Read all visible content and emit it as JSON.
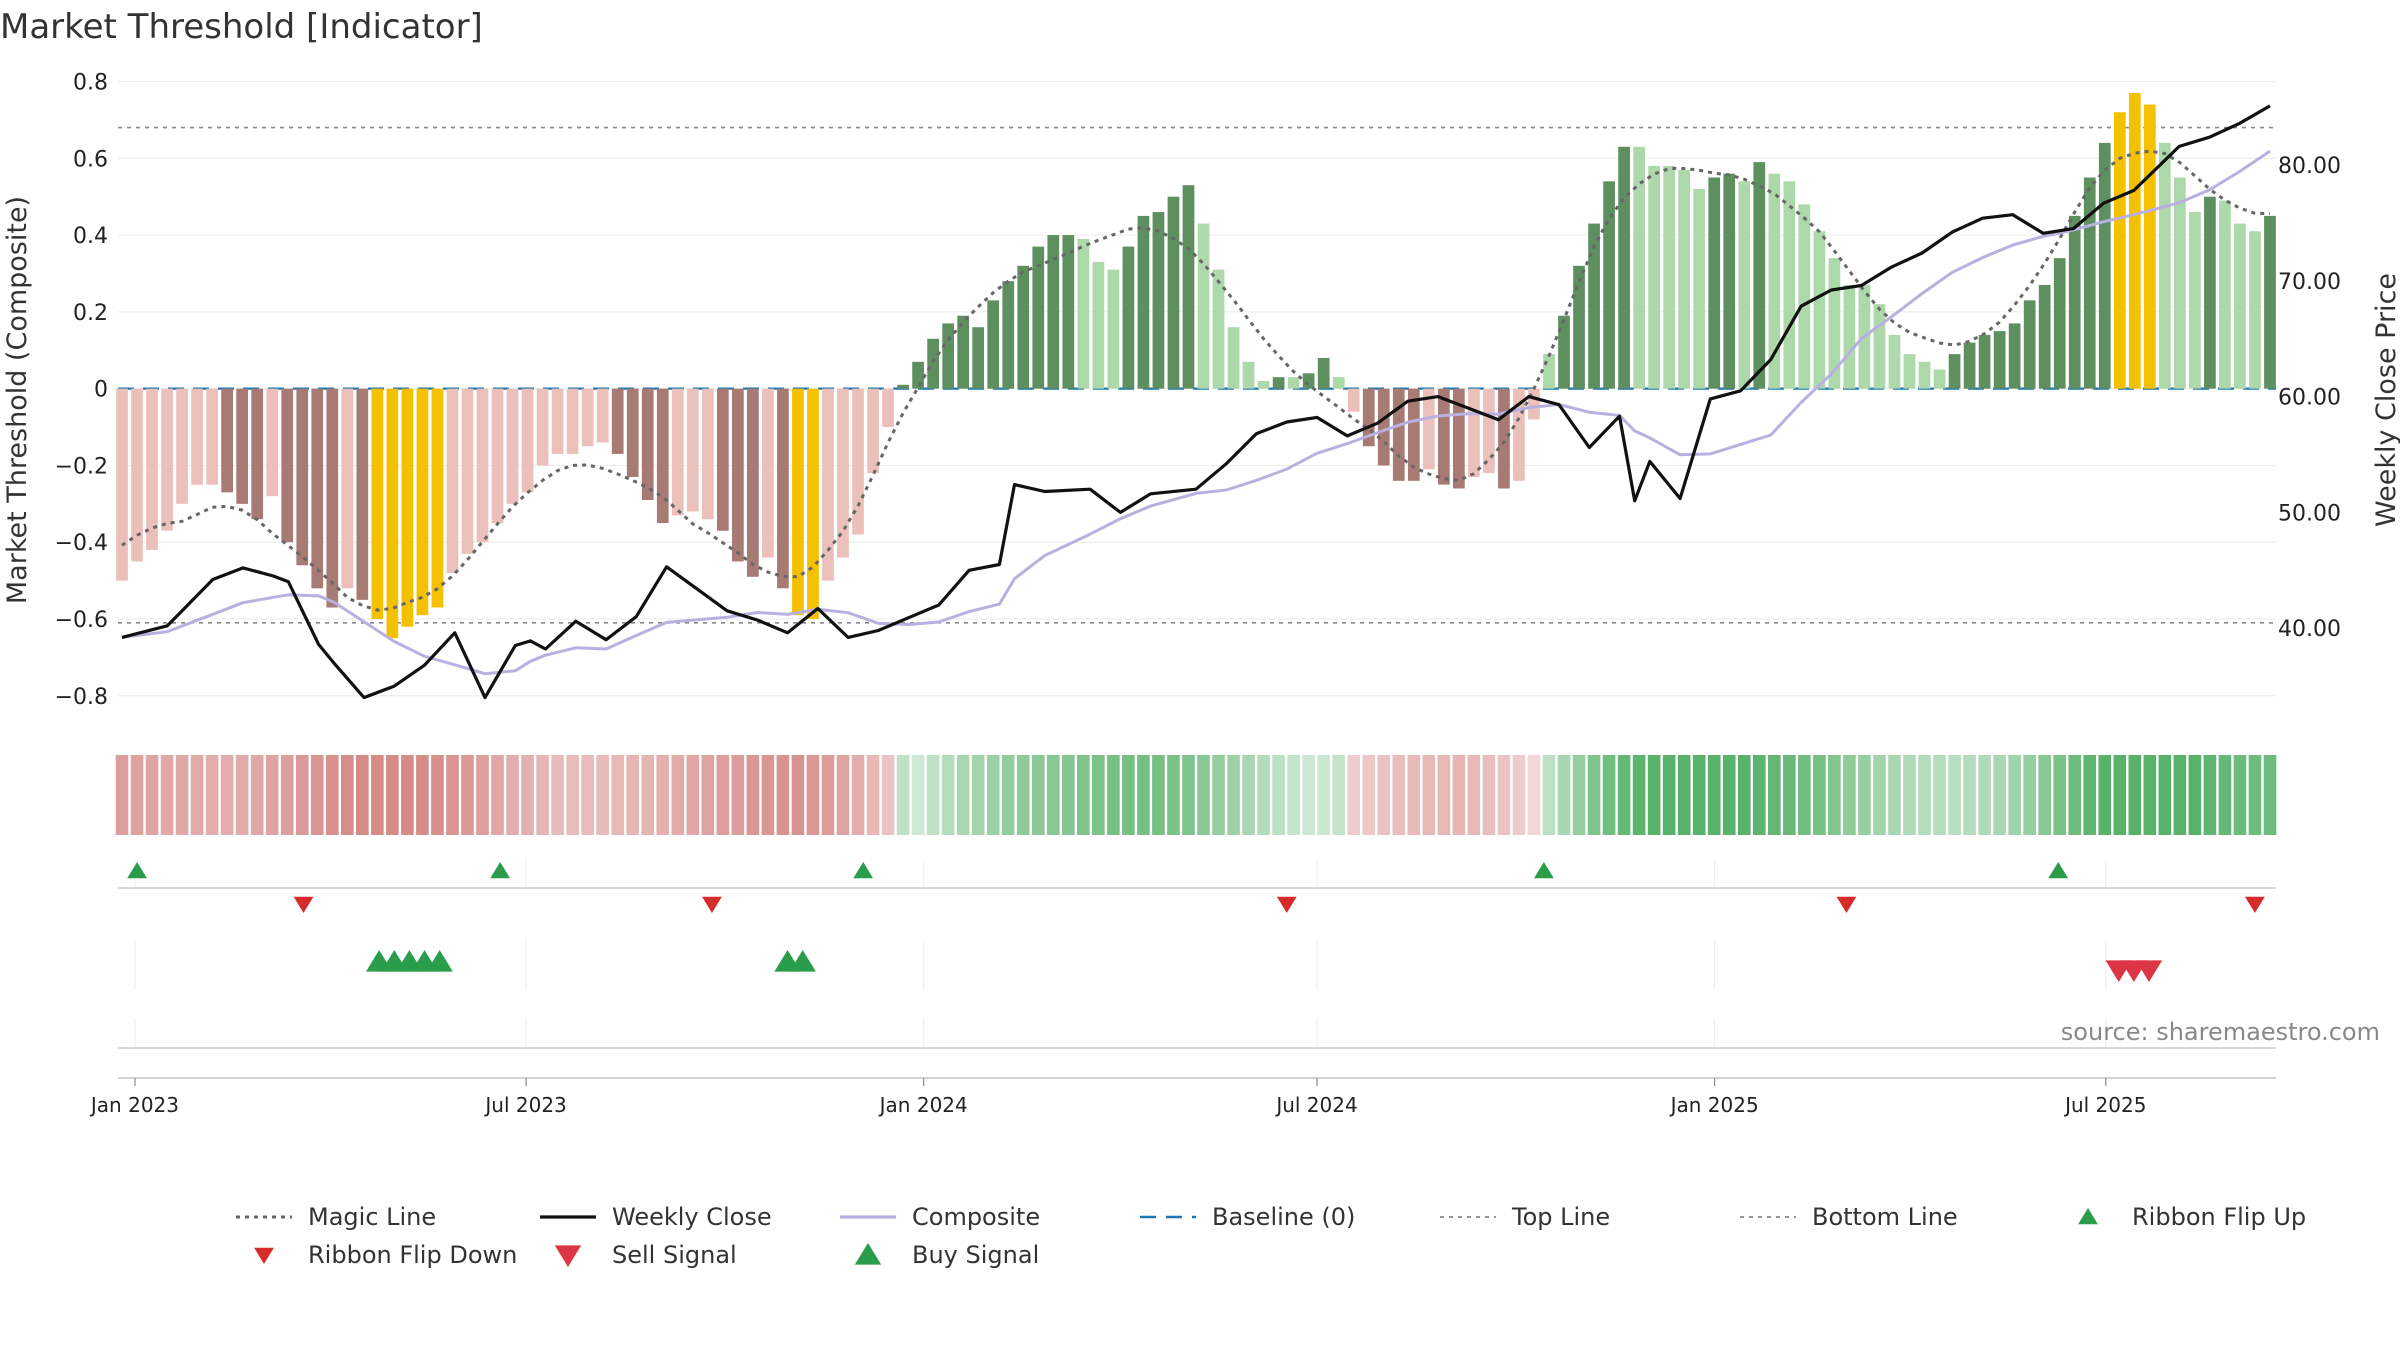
{
  "title": "Market Threshold [Indicator]",
  "source": "source: sharemaestro.com",
  "colors": {
    "magic": "#666666",
    "close": "#111111",
    "composite": "#b8b0e0",
    "baseline": "#1f77b4",
    "guide": "#888888",
    "bar_green_dark": "#5e8f5f",
    "bar_green_light": "#acd8aa",
    "bar_red_dark": "#a87a74",
    "bar_red_light": "#ecc0ba",
    "bar_yellow": "#f5c000",
    "flip_up": "#2a9d4a",
    "flip_down": "#d62b2b",
    "sell": "#dc3545",
    "buy": "#2a9d4a"
  },
  "chart_data": {
    "type": "bar+line",
    "title": "Market Threshold [Indicator]",
    "ylabel_left": "Market Threshold (Composite)",
    "ylabel_right": "Weekly Close Price",
    "ylim_left": [
      -0.85,
      0.83
    ],
    "ylim_right": [
      32.5,
      88.2
    ],
    "yticks_left": [
      0.8,
      0.6,
      0.4,
      0.2,
      0,
      -0.2,
      -0.4,
      -0.6,
      -0.8
    ],
    "yticks_left_labels": [
      "0.8",
      "0.6",
      "0.4",
      "0.2",
      "0",
      "−0.2",
      "−0.4",
      "−0.6",
      "−0.8"
    ],
    "yticks_right": [
      80,
      70,
      60,
      50,
      40
    ],
    "yticks_right_labels": [
      "80.00",
      "70.00",
      "60.00",
      "50.00",
      "40.00"
    ],
    "x_start": "2022-12-26",
    "x_end": "2025-09-15",
    "xticks": [
      {
        "date": "2023-01-01",
        "label": "Jan 2023"
      },
      {
        "date": "2023-07-01",
        "label": "Jul 2023"
      },
      {
        "date": "2024-01-01",
        "label": "Jan 2024"
      },
      {
        "date": "2024-07-01",
        "label": "Jul 2024"
      },
      {
        "date": "2025-01-01",
        "label": "Jan 2025"
      },
      {
        "date": "2025-07-01",
        "label": "Jul 2025"
      }
    ],
    "top_line": 0.68,
    "bottom_line": -0.61,
    "baseline": 0,
    "histogram": [
      [
        -0.5,
        "rl"
      ],
      [
        -0.45,
        "rl"
      ],
      [
        -0.42,
        "rl"
      ],
      [
        -0.37,
        "rl"
      ],
      [
        -0.3,
        "rl"
      ],
      [
        -0.25,
        "rl"
      ],
      [
        -0.25,
        "rl"
      ],
      [
        -0.27,
        "rd"
      ],
      [
        -0.3,
        "rd"
      ],
      [
        -0.34,
        "rd"
      ],
      [
        -0.28,
        "rl"
      ],
      [
        -0.4,
        "rd"
      ],
      [
        -0.46,
        "rd"
      ],
      [
        -0.52,
        "rd"
      ],
      [
        -0.57,
        "rd"
      ],
      [
        -0.52,
        "rl"
      ],
      [
        -0.55,
        "rd"
      ],
      [
        -0.6,
        "y"
      ],
      [
        -0.65,
        "y"
      ],
      [
        -0.62,
        "y"
      ],
      [
        -0.59,
        "y"
      ],
      [
        -0.57,
        "y"
      ],
      [
        -0.48,
        "rl"
      ],
      [
        -0.43,
        "rl"
      ],
      [
        -0.4,
        "rl"
      ],
      [
        -0.35,
        "rl"
      ],
      [
        -0.3,
        "rl"
      ],
      [
        -0.27,
        "rl"
      ],
      [
        -0.2,
        "rl"
      ],
      [
        -0.17,
        "rl"
      ],
      [
        -0.17,
        "rl"
      ],
      [
        -0.15,
        "rl"
      ],
      [
        -0.14,
        "rl"
      ],
      [
        -0.17,
        "rd"
      ],
      [
        -0.23,
        "rd"
      ],
      [
        -0.29,
        "rd"
      ],
      [
        -0.35,
        "rd"
      ],
      [
        -0.33,
        "rl"
      ],
      [
        -0.32,
        "rl"
      ],
      [
        -0.34,
        "rl"
      ],
      [
        -0.37,
        "rd"
      ],
      [
        -0.45,
        "rd"
      ],
      [
        -0.49,
        "rd"
      ],
      [
        -0.44,
        "rl"
      ],
      [
        -0.52,
        "rd"
      ],
      [
        -0.59,
        "y"
      ],
      [
        -0.6,
        "y"
      ],
      [
        -0.5,
        "rl"
      ],
      [
        -0.44,
        "rl"
      ],
      [
        -0.38,
        "rl"
      ],
      [
        -0.22,
        "rl"
      ],
      [
        -0.1,
        "rl"
      ],
      [
        0.01,
        "gd"
      ],
      [
        0.07,
        "gd"
      ],
      [
        0.13,
        "gd"
      ],
      [
        0.17,
        "gd"
      ],
      [
        0.19,
        "gd"
      ],
      [
        0.16,
        "gd"
      ],
      [
        0.23,
        "gd"
      ],
      [
        0.28,
        "gd"
      ],
      [
        0.32,
        "gd"
      ],
      [
        0.37,
        "gd"
      ],
      [
        0.4,
        "gd"
      ],
      [
        0.4,
        "gd"
      ],
      [
        0.39,
        "gl"
      ],
      [
        0.33,
        "gl"
      ],
      [
        0.31,
        "gl"
      ],
      [
        0.37,
        "gd"
      ],
      [
        0.45,
        "gd"
      ],
      [
        0.46,
        "gd"
      ],
      [
        0.5,
        "gd"
      ],
      [
        0.53,
        "gd"
      ],
      [
        0.43,
        "gl"
      ],
      [
        0.31,
        "gl"
      ],
      [
        0.16,
        "gl"
      ],
      [
        0.07,
        "gl"
      ],
      [
        0.02,
        "gl"
      ],
      [
        0.03,
        "gd"
      ],
      [
        0.03,
        "gl"
      ],
      [
        0.04,
        "gd"
      ],
      [
        0.08,
        "gd"
      ],
      [
        0.03,
        "gl"
      ],
      [
        -0.06,
        "rl"
      ],
      [
        -0.15,
        "rd"
      ],
      [
        -0.2,
        "rd"
      ],
      [
        -0.24,
        "rd"
      ],
      [
        -0.24,
        "rd"
      ],
      [
        -0.21,
        "rl"
      ],
      [
        -0.25,
        "rd"
      ],
      [
        -0.26,
        "rd"
      ],
      [
        -0.23,
        "rl"
      ],
      [
        -0.22,
        "rl"
      ],
      [
        -0.26,
        "rd"
      ],
      [
        -0.24,
        "rl"
      ],
      [
        -0.08,
        "rl"
      ],
      [
        0.09,
        "gl"
      ],
      [
        0.19,
        "gd"
      ],
      [
        0.32,
        "gd"
      ],
      [
        0.43,
        "gd"
      ],
      [
        0.54,
        "gd"
      ],
      [
        0.63,
        "gd"
      ],
      [
        0.63,
        "gl"
      ],
      [
        0.58,
        "gl"
      ],
      [
        0.58,
        "gl"
      ],
      [
        0.57,
        "gl"
      ],
      [
        0.52,
        "gl"
      ],
      [
        0.55,
        "gd"
      ],
      [
        0.56,
        "gd"
      ],
      [
        0.54,
        "gl"
      ],
      [
        0.59,
        "gd"
      ],
      [
        0.56,
        "gl"
      ],
      [
        0.54,
        "gl"
      ],
      [
        0.48,
        "gl"
      ],
      [
        0.41,
        "gl"
      ],
      [
        0.34,
        "gl"
      ],
      [
        0.27,
        "gl"
      ],
      [
        0.27,
        "gl"
      ],
      [
        0.22,
        "gl"
      ],
      [
        0.14,
        "gl"
      ],
      [
        0.09,
        "gl"
      ],
      [
        0.07,
        "gl"
      ],
      [
        0.05,
        "gl"
      ],
      [
        0.09,
        "gd"
      ],
      [
        0.12,
        "gd"
      ],
      [
        0.14,
        "gd"
      ],
      [
        0.15,
        "gd"
      ],
      [
        0.17,
        "gd"
      ],
      [
        0.23,
        "gd"
      ],
      [
        0.27,
        "gd"
      ],
      [
        0.34,
        "gd"
      ],
      [
        0.45,
        "gd"
      ],
      [
        0.55,
        "gd"
      ],
      [
        0.64,
        "gd"
      ],
      [
        0.72,
        "y"
      ],
      [
        0.77,
        "y"
      ],
      [
        0.74,
        "y"
      ],
      [
        0.64,
        "gl"
      ],
      [
        0.55,
        "gl"
      ],
      [
        0.46,
        "gl"
      ],
      [
        0.5,
        "gd"
      ],
      [
        0.49,
        "gl"
      ],
      [
        0.43,
        "gl"
      ],
      [
        0.41,
        "gl"
      ],
      [
        0.45,
        "gd"
      ]
    ],
    "weekly_close": [
      [
        "2022-12-26",
        39.2
      ],
      [
        "2023-01-16",
        40.2
      ],
      [
        "2023-02-06",
        44.2
      ],
      [
        "2023-02-20",
        45.2
      ],
      [
        "2023-03-06",
        44.5
      ],
      [
        "2023-03-13",
        44.0
      ],
      [
        "2023-03-27",
        38.6
      ],
      [
        "2023-04-03",
        37.0
      ],
      [
        "2023-04-17",
        34.0
      ],
      [
        "2023-05-01",
        35.0
      ],
      [
        "2023-05-15",
        36.8
      ],
      [
        "2023-05-29",
        39.6
      ],
      [
        "2023-06-12",
        34.0
      ],
      [
        "2023-06-26",
        38.5
      ],
      [
        "2023-07-03",
        38.9
      ],
      [
        "2023-07-10",
        38.2
      ],
      [
        "2023-07-24",
        40.6
      ],
      [
        "2023-08-07",
        39.0
      ],
      [
        "2023-08-21",
        41.0
      ],
      [
        "2023-09-04",
        45.3
      ],
      [
        "2023-10-02",
        41.5
      ],
      [
        "2023-10-16",
        40.7
      ],
      [
        "2023-10-30",
        39.6
      ],
      [
        "2023-11-13",
        41.7
      ],
      [
        "2023-11-27",
        39.2
      ],
      [
        "2023-12-11",
        39.8
      ],
      [
        "2023-12-25",
        40.9
      ],
      [
        "2024-01-08",
        42.0
      ],
      [
        "2024-01-22",
        45.0
      ],
      [
        "2024-02-05",
        45.5
      ],
      [
        "2024-02-12",
        52.4
      ],
      [
        "2024-02-26",
        51.8
      ],
      [
        "2024-03-18",
        52.0
      ],
      [
        "2024-04-01",
        50.0
      ],
      [
        "2024-04-15",
        51.6
      ],
      [
        "2024-05-06",
        52.0
      ],
      [
        "2024-05-20",
        54.2
      ],
      [
        "2024-06-03",
        56.8
      ],
      [
        "2024-06-17",
        57.8
      ],
      [
        "2024-07-01",
        58.2
      ],
      [
        "2024-07-15",
        56.6
      ],
      [
        "2024-07-29",
        57.7
      ],
      [
        "2024-08-12",
        59.6
      ],
      [
        "2024-08-26",
        60.0
      ],
      [
        "2024-09-09",
        59.0
      ],
      [
        "2024-09-23",
        58.0
      ],
      [
        "2024-10-07",
        60.0
      ],
      [
        "2024-10-21",
        59.3
      ],
      [
        "2024-11-04",
        55.6
      ],
      [
        "2024-11-18",
        58.3
      ],
      [
        "2024-11-25",
        51.0
      ],
      [
        "2024-12-02",
        54.4
      ],
      [
        "2024-12-16",
        51.2
      ],
      [
        "2024-12-30",
        59.8
      ],
      [
        "2025-01-13",
        60.5
      ],
      [
        "2025-01-27",
        63.2
      ],
      [
        "2025-02-10",
        67.8
      ],
      [
        "2025-02-24",
        69.2
      ],
      [
        "2025-03-10",
        69.6
      ],
      [
        "2025-03-24",
        71.2
      ],
      [
        "2025-04-07",
        72.4
      ],
      [
        "2025-04-21",
        74.2
      ],
      [
        "2025-05-05",
        75.4
      ],
      [
        "2025-05-19",
        75.7
      ],
      [
        "2025-06-02",
        74.1
      ],
      [
        "2025-06-16",
        74.5
      ],
      [
        "2025-06-30",
        76.7
      ],
      [
        "2025-07-14",
        77.8
      ],
      [
        "2025-08-04",
        81.6
      ],
      [
        "2025-08-18",
        82.4
      ],
      [
        "2025-09-01",
        83.6
      ],
      [
        "2025-09-15",
        85.1
      ]
    ],
    "signals": {
      "ribbon_flip_up": [
        "2023-01-02",
        "2023-06-19",
        "2023-12-04",
        "2024-10-14",
        "2025-06-09"
      ],
      "ribbon_flip_down": [
        "2023-03-20",
        "2023-09-25",
        "2024-06-17",
        "2025-03-03",
        "2025-09-08"
      ],
      "buy": [
        "2023-04-24",
        "2023-05-01",
        "2023-05-08",
        "2023-05-15",
        "2023-05-22",
        "2023-10-30",
        "2023-11-06"
      ],
      "sell": [
        "2025-07-07",
        "2025-07-14",
        "2025-07-21"
      ]
    },
    "legend": [
      {
        "label": "Magic Line",
        "kind": "dotted",
        "color": "#666666"
      },
      {
        "label": "Weekly Close",
        "kind": "solid",
        "color": "#111111"
      },
      {
        "label": "Composite",
        "kind": "solid",
        "color": "#b8b0e0"
      },
      {
        "label": "Baseline (0)",
        "kind": "dashed",
        "color": "#1f77b4"
      },
      {
        "label": "Top Line",
        "kind": "dotted-thin",
        "color": "#888888"
      },
      {
        "label": "Bottom Line",
        "kind": "dotted-thin",
        "color": "#888888"
      },
      {
        "label": "Ribbon Flip Up",
        "kind": "tri-up-small",
        "color": "#2a9d4a"
      },
      {
        "label": "Ribbon Flip Down",
        "kind": "tri-down-small",
        "color": "#d62b2b"
      },
      {
        "label": "Sell Signal",
        "kind": "tri-down",
        "color": "#dc3545"
      },
      {
        "label": "Buy Signal",
        "kind": "tri-up",
        "color": "#2a9d4a"
      }
    ],
    "legend_placement": "bottom"
  }
}
